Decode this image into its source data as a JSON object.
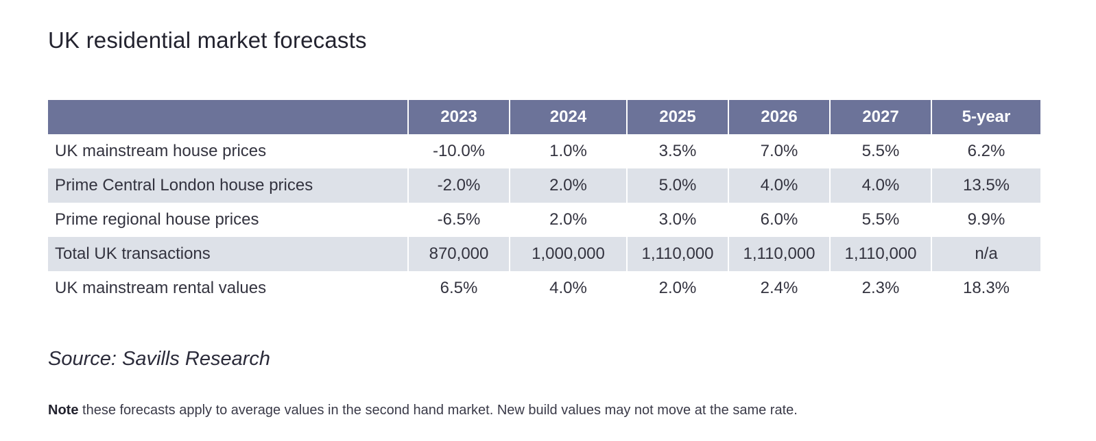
{
  "title": "UK residential market forecasts",
  "table": {
    "headers": [
      "",
      "2023",
      "2024",
      "2025",
      "2026",
      "2027",
      "5-year"
    ],
    "rows": [
      {
        "label": "UK mainstream house prices",
        "values": [
          "-10.0%",
          "1.0%",
          "3.5%",
          "7.0%",
          "5.5%",
          "6.2%"
        ]
      },
      {
        "label": "Prime Central London house prices",
        "values": [
          "-2.0%",
          "2.0%",
          "5.0%",
          "4.0%",
          "4.0%",
          "13.5%"
        ]
      },
      {
        "label": "Prime regional house prices",
        "values": [
          "-6.5%",
          "2.0%",
          "3.0%",
          "6.0%",
          "5.5%",
          "9.9%"
        ]
      },
      {
        "label": "Total UK transactions",
        "values": [
          "870,000",
          "1,000,000",
          "1,110,000",
          "1,110,000",
          "1,110,000",
          "n/a"
        ]
      },
      {
        "label": "UK mainstream rental values",
        "values": [
          "6.5%",
          "4.0%",
          "2.0%",
          "2.4%",
          "2.3%",
          "18.3%"
        ]
      }
    ]
  },
  "source": {
    "label": "Source:",
    "text": "Savills Research"
  },
  "note": {
    "label": "Note",
    "text": "these forecasts apply to average values in the second hand market. New build values may not move at the same rate."
  },
  "colors": {
    "header_bg": "#6c7399",
    "shaded_row_bg": "#dde1e8"
  }
}
